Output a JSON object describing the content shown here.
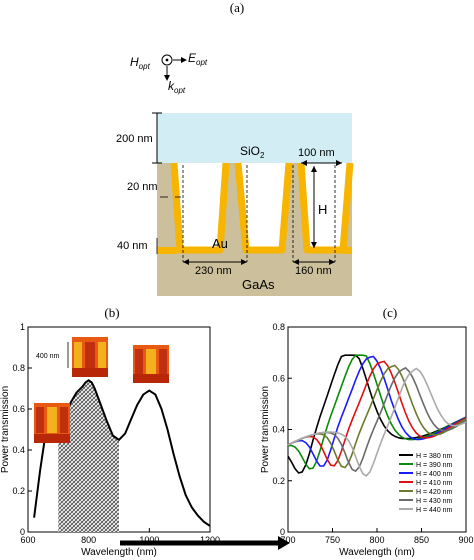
{
  "panels": {
    "a": "(a)",
    "b": "(b)",
    "c": "(c)"
  },
  "schematic": {
    "h_opt": "H",
    "h_opt_sub": "opt",
    "e_opt": "E",
    "e_opt_sub": "opt",
    "k_opt": "k",
    "k_opt_sub": "opt",
    "dim_200": "200 nm",
    "dim_20": "20 nm",
    "dim_40": "40 nm",
    "dim_100": "100 nm",
    "dim_230": "230 nm",
    "dim_160": "160 nm",
    "label_H": "H",
    "label_sio2": "SiO",
    "label_sio2_sub": "2",
    "label_au": "Au",
    "label_gaas": "GaAs",
    "colors": {
      "sio2": "#d2eef4",
      "gaas": "#cbbf9c",
      "gold": "#f7b500"
    }
  },
  "inset_label": "400 nm",
  "chart_data": [
    {
      "type": "line",
      "panel": "b",
      "xlabel": "Wavelength (nm)",
      "ylabel": "Power transmission",
      "xlim": [
        600,
        1200
      ],
      "ylim": [
        0,
        1
      ],
      "xticks": [
        600,
        800,
        1000,
        1200
      ],
      "yticks": [
        0,
        0.2,
        0.4,
        0.6,
        0.8,
        1
      ],
      "shaded_range": [
        700,
        900
      ],
      "series": [
        {
          "x": [
            620,
            640,
            660,
            680,
            690,
            700,
            720,
            740,
            760,
            780,
            790,
            800,
            810,
            820,
            840,
            860,
            880,
            900,
            920,
            940,
            960,
            980,
            1000,
            1020,
            1040,
            1060,
            1080,
            1100,
            1120,
            1140,
            1160,
            1180,
            1200
          ],
          "values": [
            0.07,
            0.3,
            0.5,
            0.57,
            0.56,
            0.54,
            0.57,
            0.63,
            0.68,
            0.71,
            0.73,
            0.74,
            0.73,
            0.7,
            0.62,
            0.54,
            0.47,
            0.45,
            0.48,
            0.55,
            0.62,
            0.67,
            0.69,
            0.67,
            0.6,
            0.5,
            0.38,
            0.27,
            0.18,
            0.12,
            0.08,
            0.05,
            0.03
          ]
        }
      ]
    },
    {
      "type": "line",
      "panel": "c",
      "xlabel": "Wavelength (nm)",
      "ylabel": "Power transmission",
      "xlim": [
        700,
        900
      ],
      "ylim": [
        0,
        0.8
      ],
      "xticks": [
        700,
        750,
        800,
        850,
        900
      ],
      "yticks": [
        0,
        0.2,
        0.4,
        0.6,
        0.8
      ],
      "legend": "lower-right",
      "series": [
        {
          "name": "H = 380  nm",
          "color": "#000000",
          "peak": 770
        },
        {
          "name": "H = 390  nm",
          "color": "#0a8a0a",
          "peak": 782
        },
        {
          "name": "H = 400  nm",
          "color": "#1a1aff",
          "peak": 794
        },
        {
          "name": "H = 410  nm",
          "color": "#e01010",
          "peak": 806
        },
        {
          "name": "H = 420  nm",
          "color": "#6a7a2a",
          "peak": 818
        },
        {
          "name": "H = 430  nm",
          "color": "#6a6a6a",
          "peak": 830
        },
        {
          "name": "H = 440  nm",
          "color": "#aaaaaa",
          "peak": 842
        }
      ]
    }
  ]
}
